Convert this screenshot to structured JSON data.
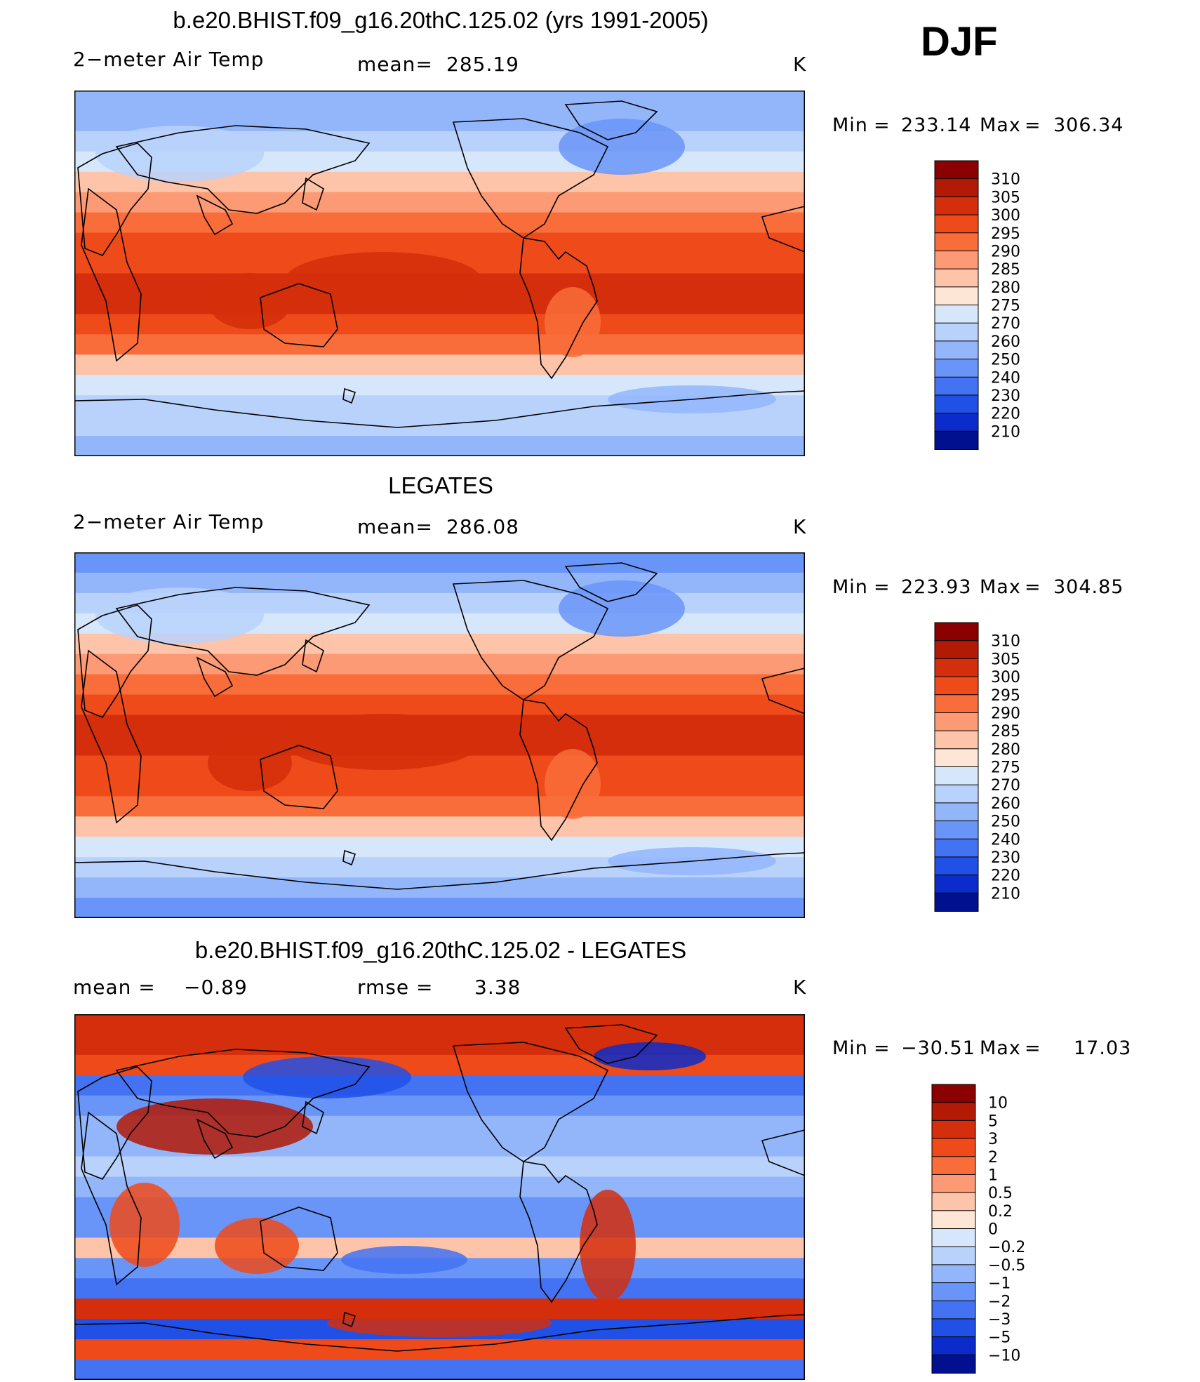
{
  "season": "DJF",
  "panels": [
    {
      "title": "b.e20.BHIST.f09_g16.20thC.125.02 (yrs 1991-2005)",
      "left_label": "2−meter Air Temp",
      "stat_label": "mean=",
      "stat_value": "285.19",
      "stat2_label": "",
      "stat2_value": "",
      "units": "K",
      "min_label": "Min",
      "min_value": "233.14",
      "max_label": "Max",
      "max_value": "306.34"
    },
    {
      "title": "LEGATES",
      "left_label": "2−meter Air Temp",
      "stat_label": "mean=",
      "stat_value": "286.08",
      "stat2_label": "",
      "stat2_value": "",
      "units": "K",
      "min_label": "Min",
      "min_value": "223.93",
      "max_label": "Max",
      "max_value": "304.85"
    },
    {
      "title": "b.e20.BHIST.f09_g16.20thC.125.02 - LEGATES",
      "left_label": "",
      "stat_label": "mean =",
      "stat_value": "−0.89",
      "stat2_label": "rmse =",
      "stat2_value": "3.38",
      "units": "K",
      "min_label": "Min",
      "min_value": "−30.51",
      "max_label": "Max",
      "max_value": "17.03"
    }
  ],
  "chart_data": [
    {
      "type": "heatmap",
      "title": "b.e20.BHIST.f09_g16.20thC.125.02 (yrs 1991-2005)",
      "variable": "2−meter Air Temp",
      "units": "K",
      "mean": 285.19,
      "min": 233.14,
      "max": 306.34,
      "colorbar_levels": [
        "310",
        "305",
        "300",
        "295",
        "290",
        "285",
        "280",
        "275",
        "270",
        "260",
        "250",
        "240",
        "230",
        "220",
        "210"
      ],
      "colorbar_colors": [
        "#8b0000",
        "#b21a05",
        "#d42e0c",
        "#ee4a1a",
        "#f96d3b",
        "#fb9a74",
        "#fdc4a9",
        "#fde6d5",
        "#d7e7fb",
        "#b9d2fb",
        "#93b6fb",
        "#6a95f8",
        "#4373f3",
        "#2150e6",
        "#0b2cca",
        "#00108f"
      ],
      "latitude_band_values_N_to_S": [
        252,
        258,
        265,
        272,
        280,
        287,
        293,
        297,
        299,
        300,
        300,
        297,
        290,
        281,
        274,
        268,
        262,
        252
      ]
    },
    {
      "type": "heatmap",
      "title": "LEGATES",
      "variable": "2−meter Air Temp",
      "units": "K",
      "mean": 286.08,
      "min": 223.93,
      "max": 304.85,
      "colorbar_levels": [
        "310",
        "305",
        "300",
        "295",
        "290",
        "285",
        "280",
        "275",
        "270",
        "260",
        "250",
        "240",
        "230",
        "220",
        "210"
      ],
      "colorbar_colors": [
        "#8b0000",
        "#b21a05",
        "#d42e0c",
        "#ee4a1a",
        "#f96d3b",
        "#fb9a74",
        "#fdc4a9",
        "#fde6d5",
        "#d7e7fb",
        "#b9d2fb",
        "#93b6fb",
        "#6a95f8",
        "#4373f3",
        "#2150e6",
        "#0b2cca",
        "#00108f"
      ],
      "latitude_band_values_N_to_S": [
        245,
        252,
        262,
        272,
        281,
        289,
        294,
        298,
        300,
        300,
        299,
        296,
        290,
        283,
        274,
        266,
        256,
        245
      ]
    },
    {
      "type": "heatmap",
      "title": "b.e20.BHIST.f09_g16.20thC.125.02 - LEGATES",
      "units": "K",
      "mean": -0.89,
      "rmse": 3.38,
      "min": -30.51,
      "max": 17.03,
      "colorbar_levels": [
        "10",
        "5",
        "3",
        "2",
        "1",
        "0.5",
        "0.2",
        "0",
        "−0.2",
        "−0.5",
        "−1",
        "−2",
        "−3",
        "−5",
        "−10"
      ],
      "colorbar_colors": [
        "#8b0000",
        "#b21a05",
        "#d42e0c",
        "#ee4a1a",
        "#f96d3b",
        "#fb9a74",
        "#fdc4a9",
        "#fde6d5",
        "#d7e7fb",
        "#b9d2fb",
        "#93b6fb",
        "#6a95f8",
        "#4373f3",
        "#2150e6",
        "#0b2cca",
        "#00108f"
      ],
      "latitude_band_values_N_to_S": [
        4,
        3,
        2,
        -3,
        -1.5,
        -0.7,
        -0.8,
        -0.5,
        -0.6,
        -1.2,
        -1.5,
        0.3,
        -1.5,
        -2.5,
        3,
        -4,
        2,
        -3
      ]
    }
  ]
}
